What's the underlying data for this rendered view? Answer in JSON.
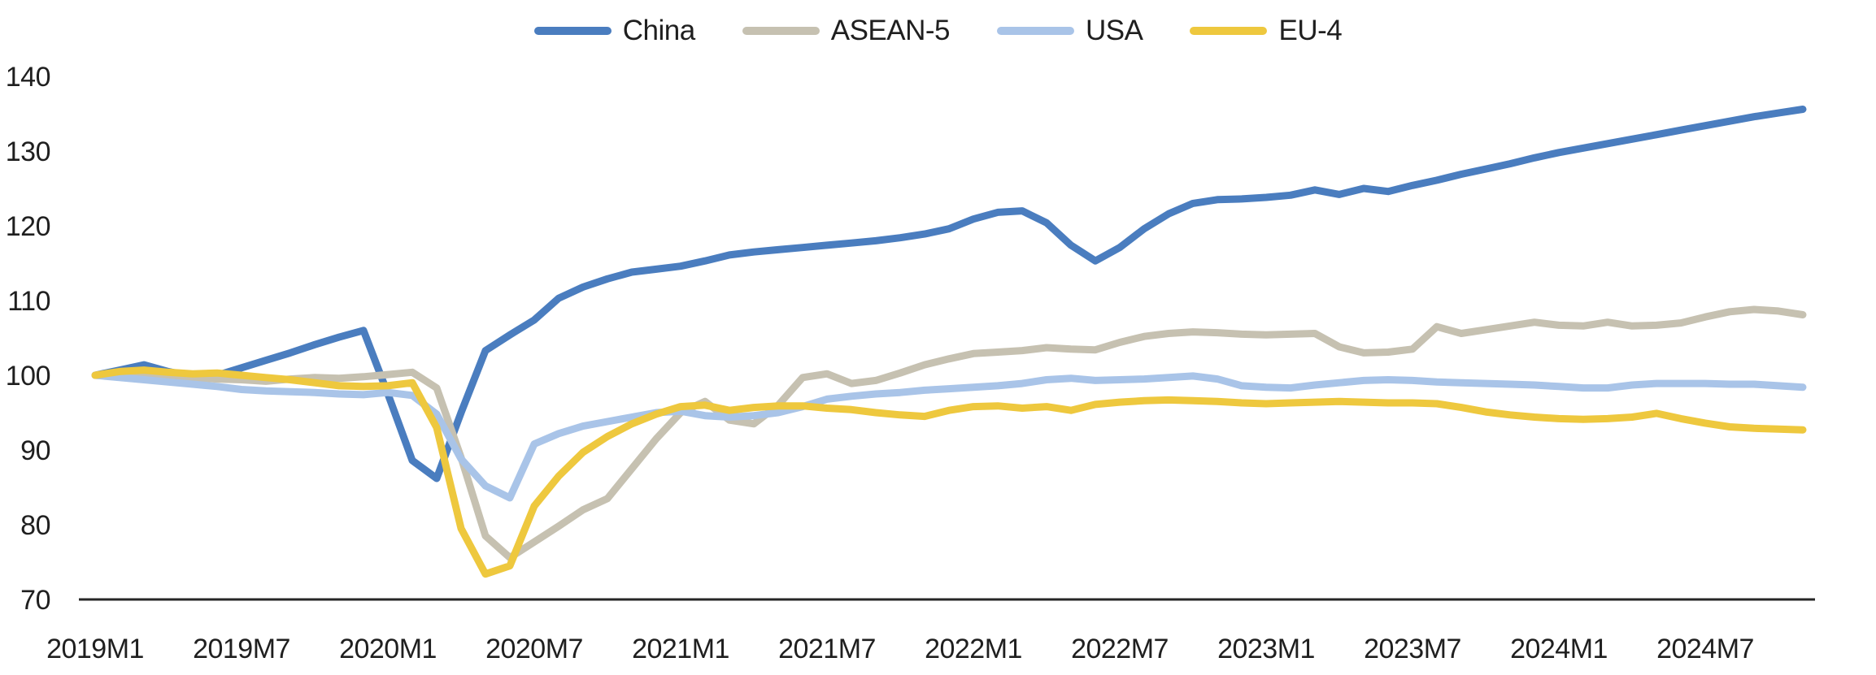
{
  "chart_data": {
    "type": "line",
    "title": "",
    "x_start": "2019M1",
    "x_end": "2024M11",
    "x_tick_labels": [
      "2019M1",
      "2019M7",
      "2020M1",
      "2020M7",
      "2021M1",
      "2021M7",
      "2022M1",
      "2022M7",
      "2023M1",
      "2023M7",
      "2024M1",
      "2024M7"
    ],
    "x_tick_interval_months": 6,
    "y_ticks": [
      70,
      80,
      90,
      100,
      110,
      120,
      130,
      140
    ],
    "ylim": [
      70,
      140
    ],
    "grid": false,
    "legend_position": "top-center",
    "axis_color": "#262626",
    "series": [
      {
        "name": "China",
        "color": "#4a7dbf",
        "values": [
          100.0,
          100.7,
          101.4,
          100.5,
          99.8,
          100.0,
          101.0,
          102.0,
          103.0,
          104.1,
          105.1,
          106.0,
          97.5,
          88.6,
          86.2,
          95.0,
          103.3,
          105.4,
          107.4,
          110.3,
          111.8,
          112.9,
          113.8,
          114.2,
          114.6,
          115.3,
          116.1,
          116.5,
          116.8,
          117.1,
          117.4,
          117.7,
          118.0,
          118.4,
          118.9,
          119.6,
          120.9,
          121.8,
          122.0,
          120.4,
          117.4,
          115.3,
          117.1,
          119.6,
          121.6,
          123.0,
          123.5,
          123.6,
          123.8,
          124.1,
          124.8,
          124.2,
          125.0,
          124.6,
          125.4,
          126.1,
          126.9,
          127.6,
          128.3,
          129.1,
          129.8,
          130.4,
          131.0,
          131.6,
          132.2,
          132.8,
          133.4,
          134.0,
          134.6,
          135.1,
          135.6
        ]
      },
      {
        "name": "ASEAN-5",
        "color": "#c6c1b1",
        "values": [
          100.0,
          99.8,
          100.1,
          99.9,
          99.7,
          99.5,
          99.4,
          99.2,
          99.5,
          99.7,
          99.6,
          99.8,
          100.1,
          100.4,
          98.3,
          89.0,
          78.5,
          75.6,
          77.7,
          79.8,
          82.0,
          83.5,
          87.5,
          91.5,
          95.0,
          96.5,
          94.0,
          93.5,
          96.0,
          99.7,
          100.2,
          98.9,
          99.3,
          100.3,
          101.4,
          102.2,
          102.9,
          103.1,
          103.3,
          103.7,
          103.5,
          103.4,
          104.4,
          105.2,
          105.6,
          105.8,
          105.7,
          105.5,
          105.4,
          105.5,
          105.6,
          103.8,
          103.0,
          103.1,
          103.5,
          106.5,
          105.6,
          106.1,
          106.6,
          107.1,
          106.7,
          106.6,
          107.1,
          106.6,
          106.7,
          107.0,
          107.8,
          108.5,
          108.8,
          108.6,
          108.1
        ]
      },
      {
        "name": "USA",
        "color": "#a9c4e8",
        "values": [
          100.0,
          99.7,
          99.4,
          99.1,
          98.8,
          98.5,
          98.1,
          97.9,
          97.8,
          97.7,
          97.5,
          97.4,
          97.7,
          97.3,
          94.8,
          88.8,
          85.2,
          83.6,
          90.8,
          92.2,
          93.2,
          93.8,
          94.4,
          95.0,
          95.2,
          94.6,
          94.4,
          94.6,
          95.0,
          95.8,
          96.8,
          97.2,
          97.5,
          97.7,
          98.0,
          98.2,
          98.4,
          98.6,
          98.9,
          99.4,
          99.6,
          99.3,
          99.4,
          99.5,
          99.7,
          99.9,
          99.5,
          98.6,
          98.4,
          98.3,
          98.7,
          99.0,
          99.3,
          99.4,
          99.3,
          99.1,
          99.0,
          98.9,
          98.8,
          98.7,
          98.5,
          98.3,
          98.3,
          98.7,
          98.9,
          98.9,
          98.9,
          98.8,
          98.8,
          98.6,
          98.4
        ]
      },
      {
        "name": "EU-4",
        "color": "#eec83e",
        "values": [
          100.0,
          100.5,
          100.7,
          100.4,
          100.2,
          100.3,
          100.0,
          99.7,
          99.4,
          99.0,
          98.6,
          98.5,
          98.6,
          99.0,
          93.0,
          79.5,
          73.4,
          74.5,
          82.5,
          86.5,
          89.7,
          91.8,
          93.5,
          94.8,
          95.8,
          96.0,
          95.3,
          95.7,
          95.9,
          95.9,
          95.6,
          95.4,
          95.0,
          94.7,
          94.5,
          95.3,
          95.8,
          95.9,
          95.6,
          95.8,
          95.3,
          96.1,
          96.4,
          96.6,
          96.7,
          96.6,
          96.5,
          96.3,
          96.2,
          96.3,
          96.4,
          96.5,
          96.4,
          96.3,
          96.3,
          96.2,
          95.7,
          95.1,
          94.7,
          94.4,
          94.2,
          94.1,
          94.2,
          94.4,
          94.9,
          94.2,
          93.6,
          93.1,
          92.9,
          92.8,
          92.7
        ]
      }
    ]
  }
}
